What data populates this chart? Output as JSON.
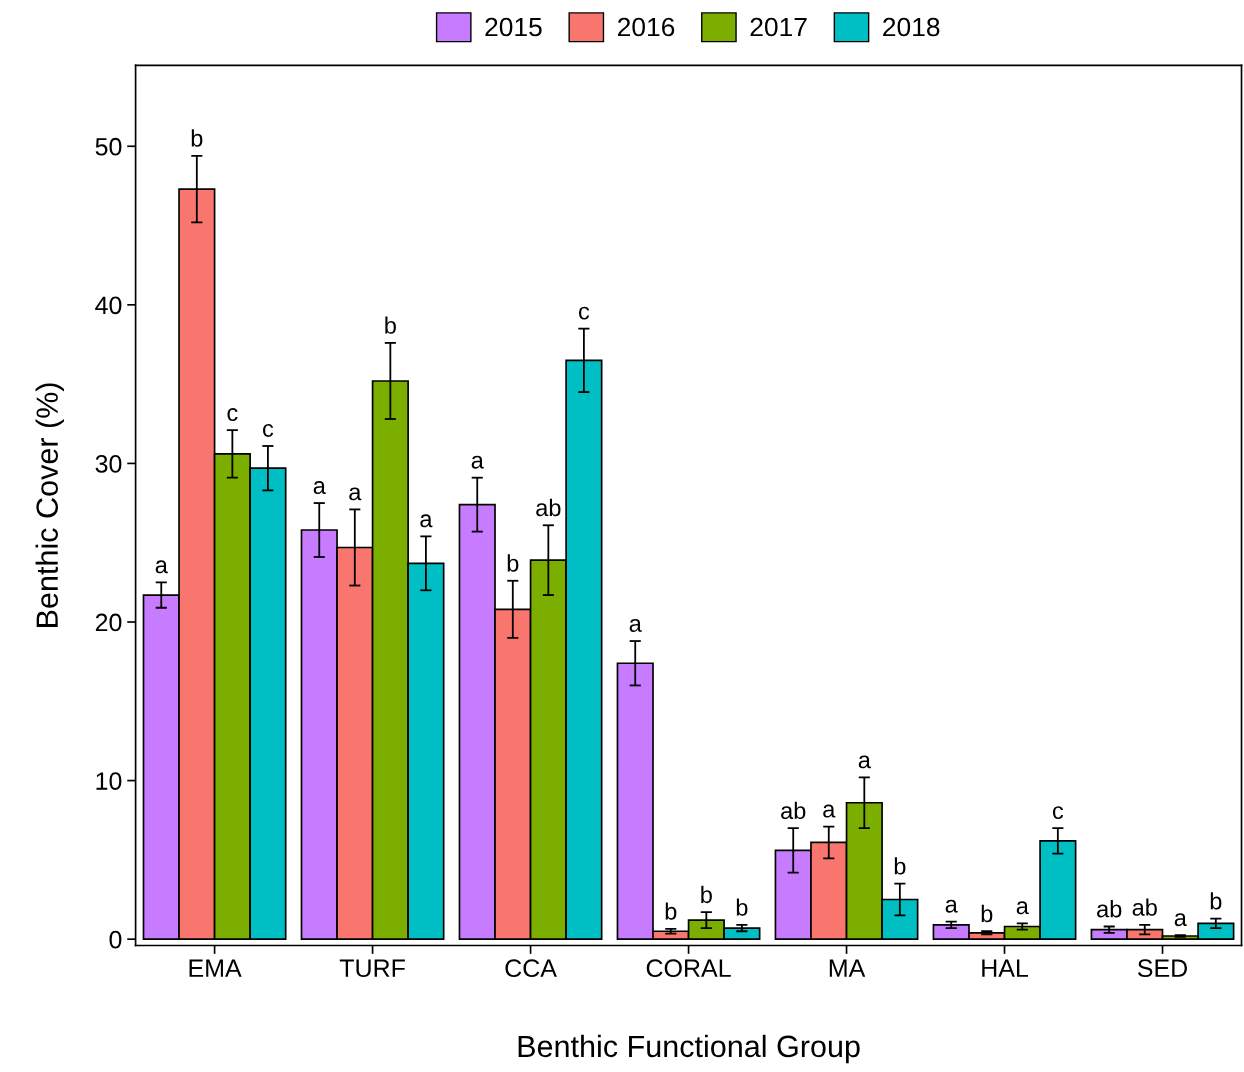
{
  "chart_data": {
    "type": "bar",
    "xlabel": "Benthic Functional Group",
    "ylabel": "Benthic Cover (%)",
    "categories": [
      "EMA",
      "TURF",
      "CCA",
      "CORAL",
      "MA",
      "HAL",
      "SED"
    ],
    "series": [
      {
        "name": "2015",
        "color": "#c77cff",
        "values": [
          21.7,
          25.8,
          27.4,
          17.4,
          5.6,
          0.9,
          0.6
        ],
        "errors": [
          0.8,
          1.7,
          1.7,
          1.4,
          1.4,
          0.2,
          0.2
        ],
        "value_labels": [
          "a",
          "a",
          "a",
          "a",
          "ab",
          "a",
          "ab"
        ]
      },
      {
        "name": "2016",
        "color": "#f8766d",
        "values": [
          47.3,
          24.7,
          20.8,
          0.5,
          6.1,
          0.4,
          0.6
        ],
        "errors": [
          2.1,
          2.4,
          1.8,
          0.15,
          1.0,
          0.1,
          0.3
        ],
        "value_labels": [
          "b",
          "a",
          "b",
          "b",
          "a",
          "b",
          "ab"
        ]
      },
      {
        "name": "2017",
        "color": "#7cae00",
        "values": [
          30.6,
          35.2,
          23.9,
          1.2,
          8.6,
          0.8,
          0.2
        ],
        "errors": [
          1.5,
          2.4,
          2.2,
          0.5,
          1.6,
          0.2,
          0.05
        ],
        "value_labels": [
          "c",
          "b",
          "ab",
          "b",
          "a",
          "a",
          "a"
        ]
      },
      {
        "name": "2018",
        "color": "#00bfc4",
        "values": [
          29.7,
          23.7,
          36.5,
          0.7,
          2.5,
          6.2,
          1.0
        ],
        "errors": [
          1.4,
          1.7,
          2.0,
          0.2,
          1.0,
          0.8,
          0.3
        ],
        "value_labels": [
          "c",
          "a",
          "c",
          "b",
          "b",
          "c",
          "b"
        ]
      }
    ],
    "ylim": [
      -0.4,
      55.1
    ],
    "yticks": [
      0,
      10,
      20,
      30,
      40,
      50
    ],
    "grid": false,
    "legend": "top"
  }
}
